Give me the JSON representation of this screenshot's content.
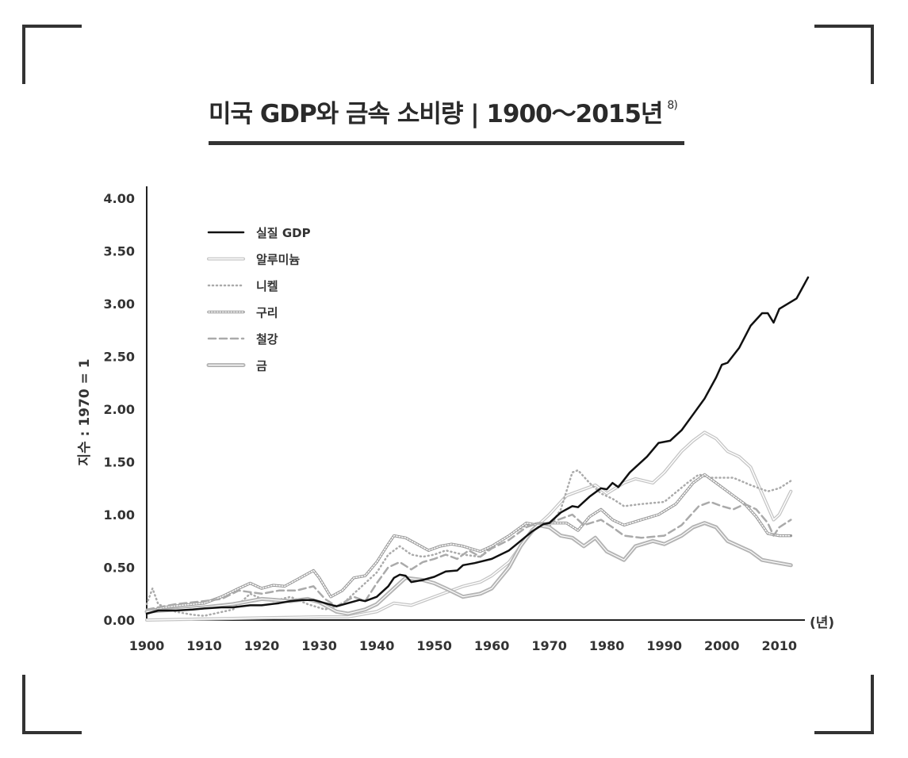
{
  "title": "미국 GDP와 금속 소비량 | 1900～2015년",
  "footnote": "8)",
  "chart_data": {
    "type": "line",
    "title": "미국 GDP와 금속 소비량 | 1900～2015년",
    "ylabel": "지수 : 1970 = 1",
    "xlabel": "(년)",
    "xlim": [
      1900,
      2011
    ],
    "ylim": [
      0,
      4.0
    ],
    "x_ticks": [
      "1900",
      "1910",
      "1920",
      "1930",
      "1940",
      "1950",
      "1960",
      "1970",
      "1980",
      "1990",
      "2000",
      "2010"
    ],
    "y_ticks": [
      "0.00",
      "0.50",
      "1.00",
      "1.50",
      "2.00",
      "2.50",
      "3.00",
      "3.50",
      "4.00"
    ],
    "legend_position": "top-left",
    "grid": false,
    "series": [
      {
        "name": "실질 GDP",
        "style": "solid",
        "color": "#111111",
        "points": [
          [
            1900,
            0.06
          ],
          [
            1902,
            0.09
          ],
          [
            1905,
            0.09
          ],
          [
            1908,
            0.1
          ],
          [
            1910,
            0.11
          ],
          [
            1913,
            0.12
          ],
          [
            1915,
            0.12
          ],
          [
            1918,
            0.14
          ],
          [
            1920,
            0.14
          ],
          [
            1923,
            0.16
          ],
          [
            1925,
            0.18
          ],
          [
            1927,
            0.19
          ],
          [
            1929,
            0.19
          ],
          [
            1931,
            0.16
          ],
          [
            1933,
            0.13
          ],
          [
            1935,
            0.16
          ],
          [
            1937,
            0.19
          ],
          [
            1938,
            0.18
          ],
          [
            1940,
            0.22
          ],
          [
            1942,
            0.32
          ],
          [
            1943,
            0.4
          ],
          [
            1944,
            0.43
          ],
          [
            1945,
            0.42
          ],
          [
            1946,
            0.36
          ],
          [
            1948,
            0.38
          ],
          [
            1950,
            0.41
          ],
          [
            1952,
            0.46
          ],
          [
            1954,
            0.47
          ],
          [
            1955,
            0.52
          ],
          [
            1957,
            0.54
          ],
          [
            1960,
            0.58
          ],
          [
            1963,
            0.66
          ],
          [
            1965,
            0.75
          ],
          [
            1967,
            0.84
          ],
          [
            1969,
            0.91
          ],
          [
            1970,
            0.92
          ],
          [
            1972,
            1.02
          ],
          [
            1974,
            1.08
          ],
          [
            1975,
            1.07
          ],
          [
            1977,
            1.17
          ],
          [
            1979,
            1.25
          ],
          [
            1980,
            1.24
          ],
          [
            1981,
            1.3
          ],
          [
            1982,
            1.26
          ],
          [
            1984,
            1.4
          ],
          [
            1987,
            1.55
          ],
          [
            1989,
            1.68
          ],
          [
            1991,
            1.7
          ],
          [
            1993,
            1.8
          ],
          [
            1995,
            1.95
          ],
          [
            1997,
            2.1
          ],
          [
            1999,
            2.3
          ],
          [
            2000,
            2.42
          ],
          [
            2001,
            2.44
          ],
          [
            2003,
            2.58
          ],
          [
            2005,
            2.79
          ],
          [
            2007,
            2.91
          ],
          [
            2008,
            2.91
          ],
          [
            2009,
            2.82
          ],
          [
            2010,
            2.95
          ],
          [
            2013,
            3.05
          ],
          [
            2015,
            3.25
          ]
        ]
      },
      {
        "name": "알루미늄",
        "style": "double",
        "color": "#c4c4c4",
        "points": [
          [
            1900,
            0.0
          ],
          [
            1910,
            0.01
          ],
          [
            1920,
            0.02
          ],
          [
            1930,
            0.03
          ],
          [
            1935,
            0.03
          ],
          [
            1940,
            0.08
          ],
          [
            1943,
            0.16
          ],
          [
            1946,
            0.14
          ],
          [
            1950,
            0.22
          ],
          [
            1955,
            0.32
          ],
          [
            1958,
            0.36
          ],
          [
            1960,
            0.42
          ],
          [
            1963,
            0.55
          ],
          [
            1965,
            0.7
          ],
          [
            1968,
            0.9
          ],
          [
            1970,
            1.0
          ],
          [
            1973,
            1.18
          ],
          [
            1975,
            1.22
          ],
          [
            1978,
            1.28
          ],
          [
            1980,
            1.2
          ],
          [
            1983,
            1.3
          ],
          [
            1985,
            1.34
          ],
          [
            1988,
            1.3
          ],
          [
            1990,
            1.4
          ],
          [
            1993,
            1.6
          ],
          [
            1995,
            1.7
          ],
          [
            1997,
            1.78
          ],
          [
            1999,
            1.72
          ],
          [
            2001,
            1.6
          ],
          [
            2003,
            1.55
          ],
          [
            2005,
            1.45
          ],
          [
            2007,
            1.2
          ],
          [
            2009,
            0.95
          ],
          [
            2010,
            1.0
          ],
          [
            2012,
            1.22
          ]
        ]
      },
      {
        "name": "니켈",
        "style": "dotted",
        "color": "#aaaaaa",
        "points": [
          [
            1900,
            0.15
          ],
          [
            1901,
            0.3
          ],
          [
            1902,
            0.15
          ],
          [
            1905,
            0.08
          ],
          [
            1908,
            0.05
          ],
          [
            1910,
            0.04
          ],
          [
            1915,
            0.1
          ],
          [
            1918,
            0.25
          ],
          [
            1920,
            0.2
          ],
          [
            1922,
            0.18
          ],
          [
            1925,
            0.22
          ],
          [
            1928,
            0.15
          ],
          [
            1931,
            0.1
          ],
          [
            1934,
            0.15
          ],
          [
            1937,
            0.3
          ],
          [
            1940,
            0.45
          ],
          [
            1942,
            0.62
          ],
          [
            1944,
            0.7
          ],
          [
            1946,
            0.62
          ],
          [
            1948,
            0.6
          ],
          [
            1950,
            0.62
          ],
          [
            1952,
            0.66
          ],
          [
            1955,
            0.62
          ],
          [
            1958,
            0.6
          ],
          [
            1960,
            0.7
          ],
          [
            1963,
            0.8
          ],
          [
            1966,
            0.9
          ],
          [
            1968,
            0.92
          ],
          [
            1970,
            0.88
          ],
          [
            1972,
            1.05
          ],
          [
            1974,
            1.4
          ],
          [
            1975,
            1.42
          ],
          [
            1977,
            1.3
          ],
          [
            1979,
            1.2
          ],
          [
            1981,
            1.15
          ],
          [
            1983,
            1.08
          ],
          [
            1986,
            1.1
          ],
          [
            1990,
            1.12
          ],
          [
            1994,
            1.3
          ],
          [
            1996,
            1.38
          ],
          [
            1998,
            1.35
          ],
          [
            2002,
            1.35
          ],
          [
            2005,
            1.28
          ],
          [
            2008,
            1.22
          ],
          [
            2010,
            1.25
          ],
          [
            2012,
            1.32
          ]
        ]
      },
      {
        "name": "구리",
        "style": "pattern",
        "color": "#999999",
        "points": [
          [
            1900,
            0.08
          ],
          [
            1903,
            0.12
          ],
          [
            1906,
            0.14
          ],
          [
            1910,
            0.16
          ],
          [
            1913,
            0.22
          ],
          [
            1916,
            0.3
          ],
          [
            1918,
            0.35
          ],
          [
            1920,
            0.3
          ],
          [
            1922,
            0.33
          ],
          [
            1924,
            0.32
          ],
          [
            1926,
            0.38
          ],
          [
            1928,
            0.44
          ],
          [
            1929,
            0.47
          ],
          [
            1930,
            0.4
          ],
          [
            1932,
            0.22
          ],
          [
            1934,
            0.28
          ],
          [
            1936,
            0.4
          ],
          [
            1938,
            0.42
          ],
          [
            1940,
            0.55
          ],
          [
            1942,
            0.72
          ],
          [
            1943,
            0.8
          ],
          [
            1945,
            0.78
          ],
          [
            1947,
            0.72
          ],
          [
            1949,
            0.66
          ],
          [
            1951,
            0.7
          ],
          [
            1953,
            0.72
          ],
          [
            1955,
            0.7
          ],
          [
            1958,
            0.65
          ],
          [
            1960,
            0.7
          ],
          [
            1963,
            0.8
          ],
          [
            1966,
            0.92
          ],
          [
            1968,
            0.9
          ],
          [
            1970,
            0.92
          ],
          [
            1973,
            0.92
          ],
          [
            1975,
            0.85
          ],
          [
            1977,
            0.98
          ],
          [
            1979,
            1.05
          ],
          [
            1981,
            0.95
          ],
          [
            1983,
            0.9
          ],
          [
            1986,
            0.95
          ],
          [
            1989,
            1.0
          ],
          [
            1992,
            1.1
          ],
          [
            1995,
            1.3
          ],
          [
            1997,
            1.38
          ],
          [
            1999,
            1.3
          ],
          [
            2002,
            1.18
          ],
          [
            2004,
            1.1
          ],
          [
            2006,
            0.98
          ],
          [
            2008,
            0.82
          ],
          [
            2010,
            0.8
          ],
          [
            2012,
            0.8
          ]
        ]
      },
      {
        "name": "철강",
        "style": "dashed",
        "color": "#aaaaaa",
        "points": [
          [
            1900,
            0.1
          ],
          [
            1905,
            0.15
          ],
          [
            1910,
            0.18
          ],
          [
            1913,
            0.2
          ],
          [
            1916,
            0.28
          ],
          [
            1920,
            0.25
          ],
          [
            1923,
            0.28
          ],
          [
            1926,
            0.28
          ],
          [
            1929,
            0.32
          ],
          [
            1931,
            0.2
          ],
          [
            1933,
            0.13
          ],
          [
            1936,
            0.22
          ],
          [
            1938,
            0.18
          ],
          [
            1940,
            0.35
          ],
          [
            1942,
            0.5
          ],
          [
            1944,
            0.55
          ],
          [
            1946,
            0.48
          ],
          [
            1948,
            0.55
          ],
          [
            1950,
            0.58
          ],
          [
            1952,
            0.62
          ],
          [
            1954,
            0.58
          ],
          [
            1956,
            0.66
          ],
          [
            1958,
            0.6
          ],
          [
            1960,
            0.68
          ],
          [
            1963,
            0.76
          ],
          [
            1966,
            0.88
          ],
          [
            1968,
            0.92
          ],
          [
            1970,
            0.92
          ],
          [
            1972,
            0.96
          ],
          [
            1974,
            1.0
          ],
          [
            1976,
            0.9
          ],
          [
            1979,
            0.95
          ],
          [
            1981,
            0.88
          ],
          [
            1983,
            0.8
          ],
          [
            1986,
            0.78
          ],
          [
            1990,
            0.8
          ],
          [
            1993,
            0.9
          ],
          [
            1996,
            1.08
          ],
          [
            1998,
            1.12
          ],
          [
            2000,
            1.08
          ],
          [
            2002,
            1.05
          ],
          [
            2004,
            1.1
          ],
          [
            2006,
            1.05
          ],
          [
            2008,
            0.92
          ],
          [
            2009,
            0.8
          ],
          [
            2010,
            0.88
          ],
          [
            2012,
            0.95
          ]
        ]
      },
      {
        "name": "금",
        "style": "thick-double",
        "color": "#b4b4b4",
        "points": [
          [
            1900,
            0.08
          ],
          [
            1905,
            0.1
          ],
          [
            1910,
            0.12
          ],
          [
            1915,
            0.15
          ],
          [
            1920,
            0.2
          ],
          [
            1925,
            0.18
          ],
          [
            1928,
            0.2
          ],
          [
            1930,
            0.17
          ],
          [
            1933,
            0.08
          ],
          [
            1935,
            0.06
          ],
          [
            1938,
            0.1
          ],
          [
            1940,
            0.15
          ],
          [
            1943,
            0.3
          ],
          [
            1945,
            0.4
          ],
          [
            1948,
            0.38
          ],
          [
            1950,
            0.35
          ],
          [
            1952,
            0.3
          ],
          [
            1955,
            0.22
          ],
          [
            1958,
            0.25
          ],
          [
            1960,
            0.3
          ],
          [
            1963,
            0.5
          ],
          [
            1965,
            0.7
          ],
          [
            1967,
            0.85
          ],
          [
            1968,
            0.9
          ],
          [
            1970,
            0.88
          ],
          [
            1972,
            0.8
          ],
          [
            1974,
            0.78
          ],
          [
            1976,
            0.7
          ],
          [
            1978,
            0.78
          ],
          [
            1980,
            0.65
          ],
          [
            1983,
            0.57
          ],
          [
            1985,
            0.7
          ],
          [
            1988,
            0.75
          ],
          [
            1990,
            0.72
          ],
          [
            1993,
            0.8
          ],
          [
            1995,
            0.88
          ],
          [
            1997,
            0.92
          ],
          [
            1999,
            0.88
          ],
          [
            2001,
            0.75
          ],
          [
            2003,
            0.7
          ],
          [
            2005,
            0.65
          ],
          [
            2007,
            0.57
          ],
          [
            2009,
            0.55
          ],
          [
            2012,
            0.52
          ]
        ]
      }
    ]
  }
}
